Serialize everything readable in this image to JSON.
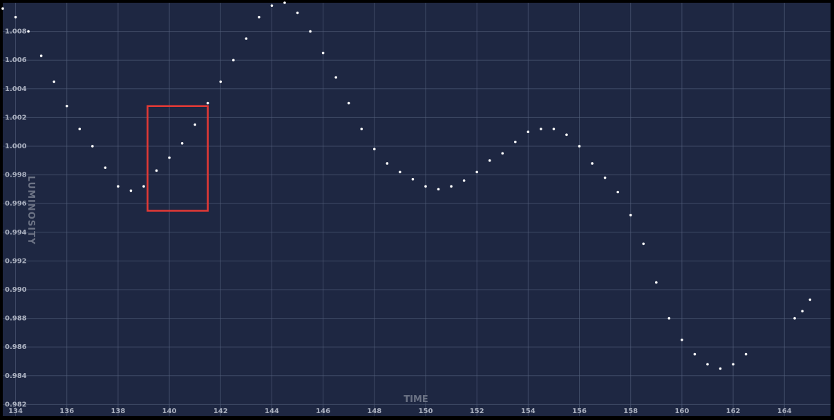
{
  "chart_data": {
    "type": "scatter",
    "title": "",
    "xlabel": "TIME",
    "ylabel": "LUMINOSITY",
    "xlim": [
      133.5,
      165.8
    ],
    "ylim": [
      0.9812,
      1.01
    ],
    "x_ticks": [
      134,
      136,
      138,
      140,
      142,
      144,
      146,
      148,
      150,
      152,
      154,
      156,
      158,
      160,
      162,
      164
    ],
    "y_ticks": [
      0.982,
      0.984,
      0.986,
      0.988,
      0.99,
      0.992,
      0.994,
      0.996,
      0.998,
      1.0,
      1.002,
      1.004,
      1.006,
      1.008
    ],
    "x_tick_labels": [
      "134",
      "136",
      "138",
      "140",
      "142",
      "144",
      "146",
      "148",
      "150",
      "152",
      "154",
      "156",
      "158",
      "160",
      "162",
      "164"
    ],
    "y_tick_labels": [
      "0.982",
      "0.984",
      "0.986",
      "0.988",
      "0.990",
      "0.992",
      "0.994",
      "0.996",
      "0.998",
      "1.000",
      "1.002",
      "1.004",
      "1.006",
      "1.008"
    ],
    "grid": true,
    "series": [
      {
        "points": [
          [
            133.5,
            1.0096
          ],
          [
            134.0,
            1.009
          ],
          [
            134.5,
            1.008
          ],
          [
            135.0,
            1.0063
          ],
          [
            135.5,
            1.0045
          ],
          [
            136.0,
            1.0028
          ],
          [
            136.5,
            1.0012
          ],
          [
            137.0,
            1.0
          ],
          [
            137.5,
            0.9985
          ],
          [
            138.0,
            0.9972
          ],
          [
            138.5,
            0.9969
          ],
          [
            139.0,
            0.9972
          ],
          [
            139.5,
            0.9983
          ],
          [
            140.0,
            0.9992
          ],
          [
            140.5,
            1.0002
          ],
          [
            141.0,
            1.0015
          ],
          [
            141.5,
            1.003
          ],
          [
            142.0,
            1.0045
          ],
          [
            142.5,
            1.006
          ],
          [
            143.0,
            1.0075
          ],
          [
            143.5,
            1.009
          ],
          [
            144.0,
            1.0098
          ],
          [
            144.5,
            1.01
          ],
          [
            145.0,
            1.0093
          ],
          [
            145.5,
            1.008
          ],
          [
            146.0,
            1.0065
          ],
          [
            146.5,
            1.0048
          ],
          [
            147.0,
            1.003
          ],
          [
            147.5,
            1.0012
          ],
          [
            148.0,
            0.9998
          ],
          [
            148.5,
            0.9988
          ],
          [
            149.0,
            0.9982
          ],
          [
            149.5,
            0.9977
          ],
          [
            150.0,
            0.9972
          ],
          [
            150.5,
            0.997
          ],
          [
            151.0,
            0.9972
          ],
          [
            151.5,
            0.9976
          ],
          [
            152.0,
            0.9982
          ],
          [
            152.5,
            0.999
          ],
          [
            153.0,
            0.9995
          ],
          [
            153.5,
            1.0003
          ],
          [
            154.0,
            1.001
          ],
          [
            154.5,
            1.0012
          ],
          [
            155.0,
            1.0012
          ],
          [
            155.5,
            1.0008
          ],
          [
            156.0,
            1.0
          ],
          [
            156.5,
            0.9988
          ],
          [
            157.0,
            0.9978
          ],
          [
            157.5,
            0.9968
          ],
          [
            158.0,
            0.9952
          ],
          [
            158.5,
            0.9932
          ],
          [
            159.0,
            0.9905
          ],
          [
            159.5,
            0.988
          ],
          [
            160.0,
            0.9865
          ],
          [
            160.5,
            0.9855
          ],
          [
            161.0,
            0.9848
          ],
          [
            161.5,
            0.9845
          ],
          [
            162.0,
            0.9848
          ],
          [
            162.5,
            0.9855
          ],
          [
            164.4,
            0.988
          ],
          [
            164.7,
            0.9885
          ],
          [
            165.0,
            0.9893
          ]
        ],
        "color": "#ffffff"
      }
    ],
    "highlight_box": {
      "x_range": [
        139.15,
        141.5
      ],
      "y_range": [
        0.9955,
        1.0028
      ],
      "color": "#e53935"
    },
    "colors": {
      "background": "#1e2742",
      "frame": "#000000",
      "grid": "#56627e",
      "points": "#ffffff"
    }
  }
}
